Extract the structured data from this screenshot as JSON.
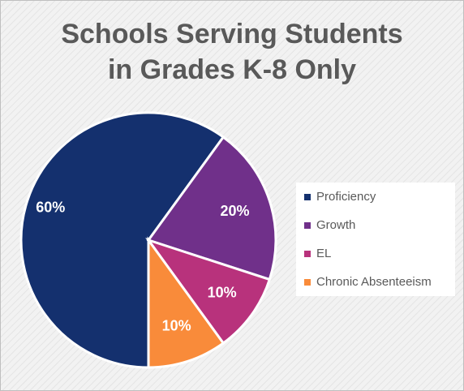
{
  "chart_data": {
    "type": "pie",
    "title": [
      "Schools Serving Students",
      "in Grades K-8 Only"
    ],
    "categories": [
      "Proficiency",
      "Growth",
      "EL",
      "Chronic Absenteeism"
    ],
    "values": [
      60,
      20,
      10,
      10
    ],
    "value_labels": [
      "60%",
      "20%",
      "10%",
      "10%"
    ],
    "colors": [
      "#14306e",
      "#70308a",
      "#b8327c",
      "#f98b3a"
    ],
    "legend": "right"
  }
}
